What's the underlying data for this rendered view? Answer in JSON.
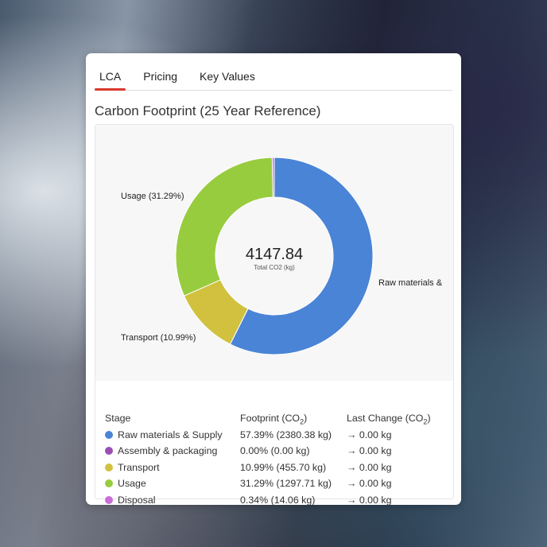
{
  "tabs": [
    {
      "label": "LCA",
      "active": true
    },
    {
      "label": "Pricing",
      "active": false
    },
    {
      "label": "Key Values",
      "active": false
    }
  ],
  "title": "Carbon Footprint (25 Year Reference)",
  "chart_data": {
    "type": "pie",
    "donut": true,
    "center_value": "4147.84",
    "center_label": "Total CO2 (kg)",
    "slices": [
      {
        "name": "Raw materials & Supply",
        "label": "Raw materials &",
        "value": 57.39,
        "color": "#4a84d6"
      },
      {
        "name": "Assembly & packaging",
        "label": "",
        "value": 0.0,
        "color": "#9c4fb3"
      },
      {
        "name": "Transport",
        "label": "Transport (10.99%)",
        "value": 10.99,
        "color": "#d1c13f"
      },
      {
        "name": "Usage",
        "label": "Usage (31.29%)",
        "value": 31.29,
        "color": "#98cc3f"
      },
      {
        "name": "Disposal",
        "label": "",
        "value": 0.34,
        "color": "#c96ed6"
      }
    ]
  },
  "table": {
    "headers": {
      "stage": "Stage",
      "footprint": "Footprint (CO",
      "footprint_sub": "2",
      "footprint_end": ")",
      "change": "Last Change (CO",
      "change_sub": "2",
      "change_end": ")"
    },
    "rows": [
      {
        "stage": "Raw materials & Supply",
        "footprint": "57.39% (2380.38 kg)",
        "change": "→ 0.00 kg",
        "color": "#4a84d6"
      },
      {
        "stage": "Assembly & packaging",
        "footprint": "0.00% (0.00 kg)",
        "change": "→ 0.00 kg",
        "color": "#9c4fb3"
      },
      {
        "stage": "Transport",
        "footprint": "10.99% (455.70 kg)",
        "change": "→ 0.00 kg",
        "color": "#d1c13f"
      },
      {
        "stage": "Usage",
        "footprint": "31.29% (1297.71 kg)",
        "change": "→ 0.00 kg",
        "color": "#98cc3f"
      },
      {
        "stage": "Disposal",
        "footprint": "0.34% (14.06 kg)",
        "change": "→ 0.00 kg",
        "color": "#c96ed6"
      }
    ]
  }
}
